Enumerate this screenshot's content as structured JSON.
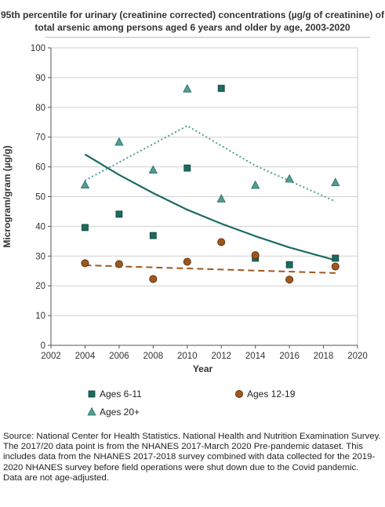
{
  "title": "95th percentile for urinary (creatinine corrected) concentrations (µg/g of creatinine) of total arsenic among persons aged 6 years and older by age, 2003-2020",
  "source_notes": [
    "Source: National Center for Health Statistics. National Health and Nutrition Examination Survey.",
    "The 2017/20 data point is from the NHANES 2017-March 2020 Pre-pandemic dataset. This includes data from the NHANES 2017-2018 survey combined with data collected for the 2019-2020 NHANES survey before field operations were shut down due to the Covid pandemic.",
    "Data are not age-adjusted."
  ],
  "chart_data": {
    "type": "scatter",
    "title": "95th percentile for urinary (creatinine corrected) concentrations (µg/g of creatinine) of total arsenic among persons aged 6 years and older by age, 2003-2020",
    "xlabel": "Year",
    "ylabel": "Microgram/gram (µg/g)",
    "xlim": [
      2002,
      2020
    ],
    "ylim": [
      0,
      100
    ],
    "xticks": [
      2002,
      2004,
      2006,
      2008,
      2010,
      2012,
      2014,
      2016,
      2018,
      2020
    ],
    "yticks": [
      0,
      10,
      20,
      30,
      40,
      50,
      60,
      70,
      80,
      90,
      100
    ],
    "grid": true,
    "legend_position": "bottom",
    "series": [
      {
        "name": "Ages 6-11",
        "marker": "square",
        "color": "#1b6b61",
        "x": [
          2004,
          2006,
          2008,
          2010,
          2012,
          2014,
          2016,
          2018.7
        ],
        "y": [
          39.6,
          44.1,
          36.9,
          59.6,
          86.4,
          29.3,
          27.1,
          29.3
        ],
        "trend": {
          "style": "solid",
          "x": [
            2004,
            2006,
            2008,
            2010,
            2012,
            2014,
            2016,
            2018.7
          ],
          "y": [
            64.2,
            57.3,
            51.2,
            45.6,
            40.9,
            36.7,
            32.9,
            28.6
          ]
        }
      },
      {
        "name": "Ages 12-19",
        "marker": "circle",
        "color": "#a0571c",
        "x": [
          2004,
          2006,
          2008,
          2010,
          2012,
          2014,
          2016,
          2018.7
        ],
        "y": [
          27.6,
          27.3,
          22.3,
          28.1,
          34.7,
          30.3,
          22.1,
          26.5
        ],
        "trend": {
          "style": "dashed",
          "x": [
            2004,
            2018.7
          ],
          "y": [
            26.9,
            24.3
          ]
        }
      },
      {
        "name": "Ages 20+",
        "marker": "triangle",
        "color": "#4f9e96",
        "x": [
          2004,
          2006,
          2008,
          2010,
          2012,
          2014,
          2016,
          2018.7
        ],
        "y": [
          53.9,
          68.3,
          58.9,
          86.2,
          49.2,
          53.8,
          55.9,
          54.7
        ],
        "trend": {
          "style": "dotted",
          "x": [
            2004,
            2010,
            2014,
            2018.7
          ],
          "y": [
            55.4,
            73.8,
            60.4,
            48.4
          ]
        }
      }
    ]
  }
}
